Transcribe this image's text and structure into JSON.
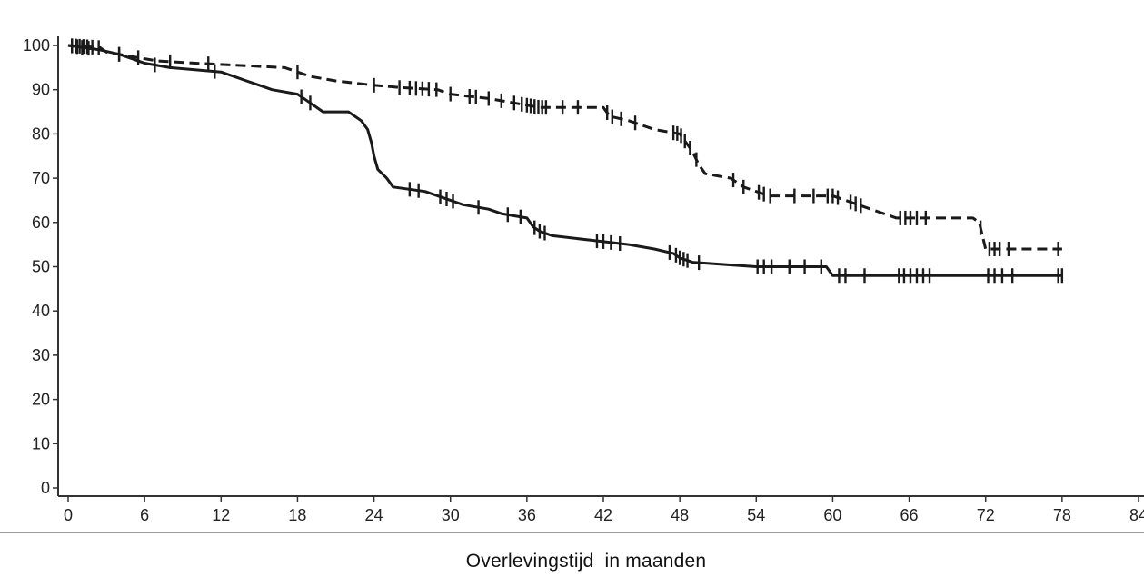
{
  "chart_data": {
    "type": "line",
    "title": "",
    "xlabel": "Overlevingstijd  in maanden",
    "ylabel": "",
    "xlim": [
      0,
      84
    ],
    "ylim": [
      0,
      100
    ],
    "xticks": [
      0,
      6,
      12,
      18,
      24,
      30,
      36,
      42,
      48,
      54,
      60,
      66,
      72,
      78,
      84
    ],
    "yticks": [
      0,
      10,
      20,
      30,
      40,
      50,
      60,
      70,
      80,
      90,
      100
    ],
    "grid": false,
    "legend": "none",
    "colors": {
      "lines": "#1a1a1a",
      "axis": "#333333"
    },
    "series": [
      {
        "style": "dashed",
        "points": [
          [
            0,
            100
          ],
          [
            2.5,
            99.5
          ],
          [
            3,
            98.5
          ],
          [
            4,
            98
          ],
          [
            5,
            97.5
          ],
          [
            6,
            97
          ],
          [
            7,
            96.5
          ],
          [
            10,
            96
          ],
          [
            17,
            95
          ],
          [
            18,
            94
          ],
          [
            19,
            93
          ],
          [
            21,
            92
          ],
          [
            24,
            91
          ],
          [
            26,
            90.5
          ],
          [
            29,
            90
          ],
          [
            30,
            89
          ],
          [
            33,
            88
          ],
          [
            35,
            87
          ],
          [
            37,
            86
          ],
          [
            42,
            86
          ],
          [
            42.5,
            84
          ],
          [
            44,
            83
          ],
          [
            46,
            81
          ],
          [
            48,
            80
          ],
          [
            48.5,
            78
          ],
          [
            49,
            76
          ],
          [
            49.5,
            73
          ],
          [
            50,
            71
          ],
          [
            52,
            70
          ],
          [
            53,
            68
          ],
          [
            54,
            67
          ],
          [
            55,
            66
          ],
          [
            60,
            66
          ],
          [
            61,
            65
          ],
          [
            62,
            64
          ],
          [
            63,
            63
          ],
          [
            64,
            62
          ],
          [
            65,
            61
          ],
          [
            71,
            61
          ],
          [
            71.5,
            60
          ],
          [
            72,
            54
          ],
          [
            78,
            54
          ]
        ],
        "censor_x": [
          0.3,
          0.6,
          0.9,
          1.2,
          1.5,
          1.9,
          2.4,
          4,
          5.5,
          8,
          11,
          18,
          24,
          26,
          26.8,
          27.3,
          27.8,
          28.3,
          28.9,
          30,
          31.5,
          32,
          33,
          34,
          35,
          35.6,
          36,
          36.3,
          36.6,
          36.9,
          37.2,
          37.5,
          38.8,
          40,
          42.3,
          42.7,
          43.4,
          44.5,
          47.5,
          47.8,
          48.1,
          48.4,
          48.8,
          49.3,
          52.2,
          53,
          54.2,
          54.6,
          55.1,
          57,
          58.5,
          59.6,
          60,
          60.4,
          61.4,
          61.8,
          62.2,
          65.3,
          65.7,
          66.1,
          66.6,
          67.3,
          71.6,
          72.3,
          72.7,
          73.1,
          73.8,
          77.7
        ]
      },
      {
        "style": "solid",
        "points": [
          [
            0,
            100
          ],
          [
            2.5,
            99
          ],
          [
            4,
            98
          ],
          [
            5,
            97
          ],
          [
            6,
            96
          ],
          [
            8,
            95
          ],
          [
            12,
            94
          ],
          [
            13,
            93
          ],
          [
            14,
            92
          ],
          [
            15,
            91
          ],
          [
            16,
            90
          ],
          [
            18,
            89
          ],
          [
            19,
            87
          ],
          [
            20,
            85
          ],
          [
            22,
            85
          ],
          [
            23,
            83
          ],
          [
            23.5,
            81
          ],
          [
            23.8,
            78
          ],
          [
            24,
            75
          ],
          [
            24.3,
            72
          ],
          [
            25,
            70
          ],
          [
            25.5,
            68
          ],
          [
            28,
            67
          ],
          [
            29,
            66
          ],
          [
            30,
            65
          ],
          [
            31,
            64
          ],
          [
            33,
            63
          ],
          [
            34,
            62
          ],
          [
            36,
            61
          ],
          [
            36.5,
            59
          ],
          [
            37,
            58
          ],
          [
            38,
            57
          ],
          [
            41,
            56
          ],
          [
            44,
            55
          ],
          [
            46,
            54
          ],
          [
            47.5,
            53
          ],
          [
            48,
            52
          ],
          [
            49,
            51
          ],
          [
            54,
            50
          ],
          [
            59.5,
            50
          ],
          [
            60,
            48
          ],
          [
            78,
            48
          ]
        ],
        "censor_x": [
          0.3,
          0.7,
          1.1,
          1.6,
          4,
          6.8,
          11.5,
          18.3,
          19,
          26.8,
          27.5,
          29.2,
          29.7,
          30.2,
          32.2,
          34.5,
          35.5,
          36.6,
          37,
          37.4,
          41.5,
          42,
          42.6,
          43.3,
          47.2,
          47.7,
          48,
          48.3,
          48.6,
          49.5,
          54.1,
          54.6,
          55.2,
          56.6,
          57.8,
          59.1,
          60.5,
          61,
          62.5,
          65.2,
          65.6,
          66.1,
          66.6,
          67.1,
          67.6,
          72.2,
          72.7,
          73.3,
          74.1,
          77.7,
          78
        ]
      }
    ]
  }
}
